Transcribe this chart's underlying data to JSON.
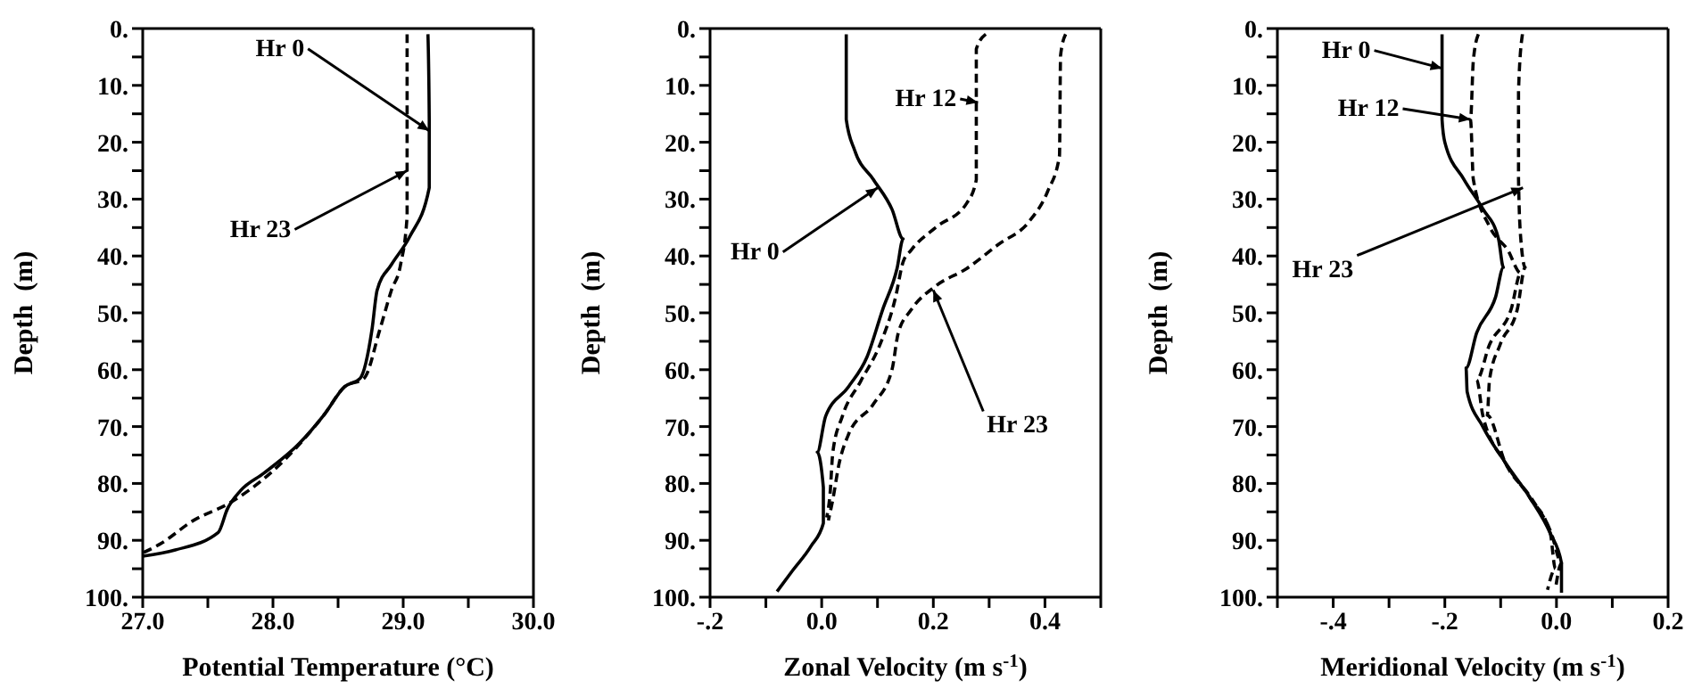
{
  "chart_data": [
    {
      "type": "line",
      "xlabel": "Potential Temperature (°C)",
      "ylabel": "Depth  (m)",
      "xlim": [
        27,
        30
      ],
      "ylim": [
        100,
        0
      ],
      "xticks": [
        {
          "value": 27,
          "label": "27.0"
        },
        {
          "value": 27.5,
          "label": null
        },
        {
          "value": 28,
          "label": "28.0"
        },
        {
          "value": 28.5,
          "label": null
        },
        {
          "value": 29,
          "label": "29.0"
        },
        {
          "value": 29.5,
          "label": null
        },
        {
          "value": 30,
          "label": "30.0"
        }
      ],
      "yticks": [
        {
          "value": 0,
          "label": "0."
        },
        {
          "value": 5,
          "label": null
        },
        {
          "value": 10,
          "label": "10."
        },
        {
          "value": 15,
          "label": null
        },
        {
          "value": 20,
          "label": "20."
        },
        {
          "value": 25,
          "label": null
        },
        {
          "value": 30,
          "label": "30."
        },
        {
          "value": 35,
          "label": null
        },
        {
          "value": 40,
          "label": "40."
        },
        {
          "value": 45,
          "label": null
        },
        {
          "value": 50,
          "label": "50."
        },
        {
          "value": 55,
          "label": null
        },
        {
          "value": 60,
          "label": "60."
        },
        {
          "value": 65,
          "label": null
        },
        {
          "value": 70,
          "label": "70."
        },
        {
          "value": 75,
          "label": null
        },
        {
          "value": 80,
          "label": "80."
        },
        {
          "value": 85,
          "label": null
        },
        {
          "value": 90,
          "label": "90."
        },
        {
          "value": 95,
          "label": null
        },
        {
          "value": 100,
          "label": "100."
        }
      ],
      "series": [
        {
          "color": "#000000",
          "line_style": "solid",
          "x": [
            29.19,
            29.2,
            29.2,
            29.05,
            28.91,
            28.8,
            28.76,
            28.67,
            28.55,
            28.39,
            28.2,
            27.93,
            27.75,
            27.65,
            27.58,
            27.25,
            27.0
          ],
          "values": [
            1,
            16,
            28,
            36.6,
            41.5,
            46,
            53,
            61.5,
            63,
            68,
            73,
            78.2,
            81.3,
            84.5,
            88.6,
            91.7,
            92.8
          ]
        },
        {
          "color": "#000000",
          "line_style": "dashed",
          "x": [
            29.03,
            29.03,
            28.98,
            28.91,
            28.82,
            28.7,
            28.55,
            28.39,
            27.98,
            27.67,
            27.39,
            27.13,
            27.0
          ],
          "values": [
            1,
            33,
            41.5,
            46,
            53,
            61.5,
            63,
            68,
            78.2,
            83.4,
            86.5,
            90.7,
            92.2
          ]
        }
      ],
      "annotations": [
        {
          "text": "Hr 0",
          "x": 29.2,
          "y": 18
        },
        {
          "text": "Hr 23",
          "x": 29.03,
          "y": 25
        }
      ]
    },
    {
      "type": "line",
      "xlabel": "Zonal Velocity (m s$^{-1}$)",
      "ylabel": "Depth  (m)",
      "xlim": [
        -0.2,
        0.5
      ],
      "ylim": [
        100,
        0
      ],
      "xticks": [
        {
          "value": -0.2,
          "label": "-.2"
        },
        {
          "value": -0.1,
          "label": null
        },
        {
          "value": 0,
          "label": "0.0"
        },
        {
          "value": 0.1,
          "label": null
        },
        {
          "value": 0.2,
          "label": "0.2"
        },
        {
          "value": 0.3,
          "label": null
        },
        {
          "value": 0.4,
          "label": "0.4"
        },
        {
          "value": 0.5,
          "label": null
        }
      ],
      "yticks": [
        {
          "value": 0,
          "label": "0."
        },
        {
          "value": 5,
          "label": null
        },
        {
          "value": 10,
          "label": "10."
        },
        {
          "value": 15,
          "label": null
        },
        {
          "value": 20,
          "label": "20."
        },
        {
          "value": 25,
          "label": null
        },
        {
          "value": 30,
          "label": "30."
        },
        {
          "value": 35,
          "label": null
        },
        {
          "value": 40,
          "label": "40."
        },
        {
          "value": 45,
          "label": null
        },
        {
          "value": 50,
          "label": "50."
        },
        {
          "value": 55,
          "label": null
        },
        {
          "value": 60,
          "label": "60."
        },
        {
          "value": 65,
          "label": null
        },
        {
          "value": 70,
          "label": "70."
        },
        {
          "value": 75,
          "label": null
        },
        {
          "value": 80,
          "label": "80."
        },
        {
          "value": 85,
          "label": null
        },
        {
          "value": 90,
          "label": "90."
        },
        {
          "value": 95,
          "label": null
        },
        {
          "value": 100,
          "label": "100."
        }
      ],
      "series": [
        {
          "color": "#000000",
          "line_style": "solid",
          "x": [
            0.044,
            0.044,
            0.059,
            0.093,
            0.126,
            0.146,
            0.135,
            0.109,
            0.081,
            0.048,
            0.007,
            -0.008,
            0.003,
            0.003,
            -0.019,
            -0.052,
            -0.08
          ],
          "values": [
            1,
            16,
            21.4,
            26.6,
            31.8,
            37,
            42.2,
            49.5,
            57.8,
            63,
            68.2,
            74.5,
            80.7,
            87,
            91,
            95.3,
            99
          ]
        },
        {
          "color": "#000000",
          "line_style": "dashed",
          "x": [
            0.294,
            0.277,
            0.277,
            0.26,
            0.204,
            0.16,
            0.146,
            0.132,
            0.104,
            0.07,
            0.037,
            0.02,
            0.015,
            0.009
          ],
          "values": [
            1,
            3.6,
            26.6,
            30.7,
            35,
            39,
            41,
            47.4,
            55.7,
            62,
            68.2,
            74.5,
            81.8,
            86
          ]
        },
        {
          "color": "#000000",
          "line_style": "dashed",
          "x": [
            0.437,
            0.428,
            0.426,
            0.405,
            0.372,
            0.316,
            0.26,
            0.204,
            0.16,
            0.137,
            0.126,
            0.093,
            0.048,
            0.031,
            0.02,
            0.012
          ],
          "values": [
            1,
            4.7,
            22.4,
            28.6,
            33.9,
            38,
            42.2,
            45.3,
            49.5,
            53.6,
            60,
            66,
            71.4,
            76.6,
            82.8,
            86.5
          ]
        }
      ],
      "annotations": [
        {
          "text": "Hr 12",
          "x": 0.28,
          "y": 13
        },
        {
          "text": "Hr 0",
          "x": 0.1,
          "y": 28
        },
        {
          "text": "Hr 23",
          "x": 0.2,
          "y": 46
        }
      ]
    },
    {
      "type": "line",
      "xlabel": "Meridional Velocity (m s$^{-1}$)",
      "ylabel": "Depth  (m)",
      "xlim": [
        -0.5,
        0.2
      ],
      "ylim": [
        100,
        0
      ],
      "xticks": [
        {
          "value": -0.5,
          "label": null
        },
        {
          "value": -0.4,
          "label": "-.4"
        },
        {
          "value": -0.3,
          "label": null
        },
        {
          "value": -0.2,
          "label": "-.2"
        },
        {
          "value": -0.1,
          "label": null
        },
        {
          "value": 0,
          "label": "0.0"
        },
        {
          "value": 0.1,
          "label": null
        },
        {
          "value": 0.2,
          "label": "0.2"
        }
      ],
      "yticks": [
        {
          "value": 0,
          "label": "0."
        },
        {
          "value": 5,
          "label": null
        },
        {
          "value": 10,
          "label": "10."
        },
        {
          "value": 15,
          "label": null
        },
        {
          "value": 20,
          "label": "20."
        },
        {
          "value": 25,
          "label": null
        },
        {
          "value": 30,
          "label": "30."
        },
        {
          "value": 35,
          "label": null
        },
        {
          "value": 40,
          "label": "40."
        },
        {
          "value": 45,
          "label": null
        },
        {
          "value": 50,
          "label": "50."
        },
        {
          "value": 55,
          "label": null
        },
        {
          "value": 60,
          "label": "60."
        },
        {
          "value": 65,
          "label": null
        },
        {
          "value": 70,
          "label": "70."
        },
        {
          "value": 75,
          "label": null
        },
        {
          "value": 80,
          "label": "80."
        },
        {
          "value": 85,
          "label": null
        },
        {
          "value": 90,
          "label": "90."
        },
        {
          "value": 95,
          "label": null
        },
        {
          "value": 100,
          "label": "100."
        }
      ],
      "series": [
        {
          "color": "#000000",
          "line_style": "solid",
          "x": [
            -0.205,
            -0.205,
            -0.2,
            -0.166,
            -0.132,
            -0.104,
            -0.095,
            -0.109,
            -0.143,
            -0.162,
            -0.16,
            -0.132,
            -0.092,
            -0.047,
            -0.011,
            0.009,
            0.009
          ],
          "values": [
            1,
            16,
            20,
            26.5,
            31.7,
            36.9,
            42,
            47.2,
            53.5,
            59.7,
            63.9,
            70,
            76.3,
            82.6,
            88.8,
            94,
            99.2
          ]
        },
        {
          "color": "#000000",
          "line_style": "dashed",
          "x": [
            -0.14,
            -0.149,
            -0.154,
            -0.149,
            -0.12,
            -0.087,
            -0.064,
            -0.081,
            -0.12,
            -0.143,
            -0.132,
            -0.092,
            -0.047,
            -0.011,
            -0.002,
            -0.016
          ],
          "values": [
            1,
            5.7,
            16.1,
            26.5,
            34.8,
            39,
            43,
            49.3,
            55.6,
            61.8,
            68,
            76.3,
            82.6,
            88.8,
            95,
            98.7
          ]
        },
        {
          "color": "#000000",
          "line_style": "dashed",
          "x": [
            -0.061,
            -0.068,
            -0.068,
            -0.064,
            -0.056,
            -0.07,
            -0.101,
            -0.12,
            -0.124,
            -0.092,
            -0.045,
            -0.009,
            0.009,
            -0.002
          ],
          "values": [
            1,
            11,
            26.5,
            36.9,
            42,
            49.3,
            55.6,
            61.8,
            68,
            76.3,
            82.6,
            88.8,
            94,
            98.7
          ]
        }
      ],
      "annotations": [
        {
          "text": "Hr 0",
          "x": -0.205,
          "y": 7
        },
        {
          "text": "Hr 12",
          "x": -0.154,
          "y": 16
        },
        {
          "text": "Hr 23",
          "x": -0.06,
          "y": 28
        }
      ]
    }
  ]
}
